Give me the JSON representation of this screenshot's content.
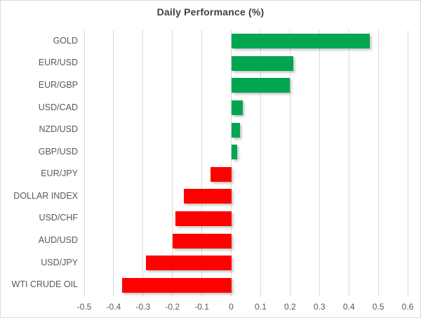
{
  "window": {
    "background": "#ffffff",
    "border_color": "#d9d9d9"
  },
  "chart_data": {
    "type": "bar",
    "orientation": "horizontal",
    "title": "Daily Performance (%)",
    "categories": [
      "GOLD",
      "EUR/USD",
      "EUR/GBP",
      "USD/CAD",
      "NZD/USD",
      "GBP/USD",
      "EUR/JPY",
      "DOLLAR INDEX",
      "USD/CHF",
      "AUD/USD",
      "USD/JPY",
      "WTI CRUDE OIL"
    ],
    "values": [
      0.47,
      0.21,
      0.2,
      0.04,
      0.03,
      0.02,
      -0.07,
      -0.16,
      -0.19,
      -0.2,
      -0.29,
      -0.37
    ],
    "xlabel": "",
    "ylabel": "",
    "xlim": [
      -0.5,
      0.6
    ],
    "x_ticks": [
      -0.5,
      -0.4,
      -0.3,
      -0.2,
      -0.1,
      0,
      0.1,
      0.2,
      0.3,
      0.4,
      0.5,
      0.6
    ],
    "x_tick_labels": [
      "-0.5",
      "-0.4",
      "-0.3",
      "-0.2",
      "-0.1",
      "0",
      "0.1",
      "0.2",
      "0.3",
      "0.4",
      "0.5",
      "0.6"
    ],
    "positive_color": "#00A550",
    "negative_color": "#FF0000",
    "gridline_color": "#D9D9D9",
    "text_color": "#595959",
    "title_color": "#3F3F3F",
    "grid": "vertical",
    "legend": "none"
  }
}
